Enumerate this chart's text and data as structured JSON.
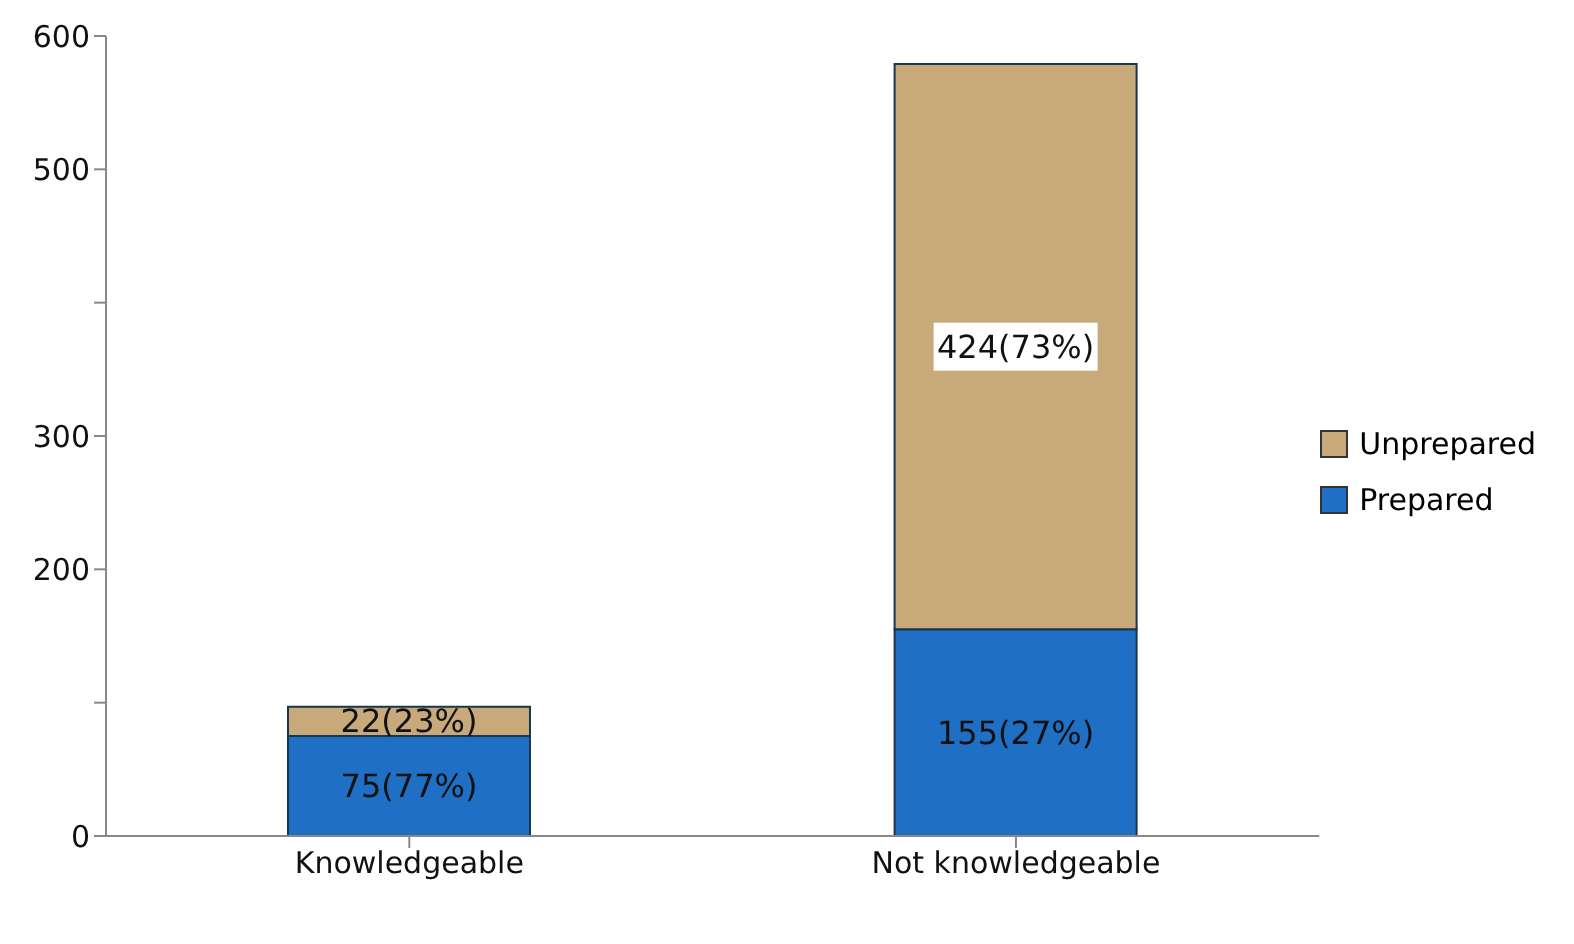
{
  "chart_data": {
    "type": "bar",
    "stacked": true,
    "categories": [
      "Knowledgeable",
      "Not knowledgeable"
    ],
    "series": [
      {
        "name": "Prepared",
        "color": "#1f6fc5",
        "values": [
          75,
          155
        ],
        "value_labels": [
          "75(77%)",
          "155(27%)"
        ]
      },
      {
        "name": "Unprepared",
        "color": "#c8a97a",
        "values": [
          22,
          424
        ],
        "value_labels": [
          "22(23%)",
          "424(73%)"
        ]
      }
    ],
    "ylim": [
      0,
      600
    ],
    "yticks": [
      0,
      {
        "value": 100,
        "label": null
      },
      200,
      300,
      {
        "value": 400,
        "label": null
      },
      500,
      600
    ],
    "grid": false,
    "legend": "right"
  }
}
